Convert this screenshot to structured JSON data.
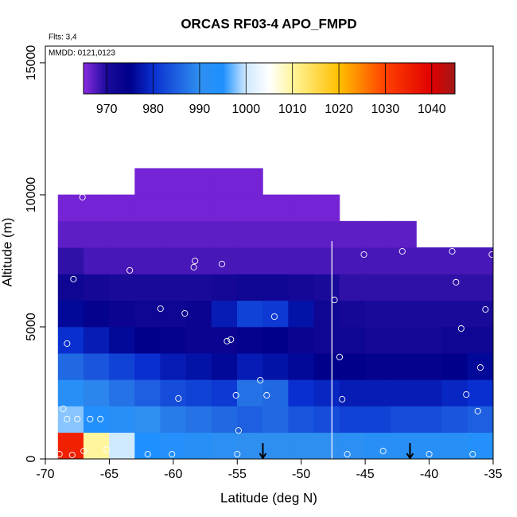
{
  "chart_data": {
    "type": "heatmap",
    "title": "ORCAS RF03-4 APO_FMPD",
    "annotations": [
      "Flts: 3,4",
      "MMDD: 0121,0123"
    ],
    "xlabel": "Latitude (deg N)",
    "ylabel": "Altitude (m)",
    "xlim": [
      -70,
      -35
    ],
    "ylim": [
      0,
      15630
    ],
    "xticks": [
      -70,
      -65,
      -60,
      -55,
      -50,
      -45,
      -40,
      -35
    ],
    "yticks": [
      0,
      5000,
      10000,
      15000
    ],
    "x_edges": [
      -69,
      -67,
      -65,
      -63,
      -61,
      -59,
      -57,
      -55,
      -53,
      -51,
      -49,
      -47,
      -45,
      -43,
      -41,
      -39,
      -37,
      -35
    ],
    "y_edges": [
      0,
      1000,
      2000,
      3000,
      4000,
      5000,
      6000,
      7000,
      8000,
      9000,
      10000,
      11000
    ],
    "z": [
      [
        1035,
        1010,
        1000,
        995,
        993,
        992,
        991,
        990,
        990,
        990,
        990,
        991,
        992,
        992,
        992,
        992,
        993
      ],
      [
        998,
        994,
        992,
        990,
        988,
        987,
        986,
        985,
        986,
        984,
        983,
        982,
        982,
        983,
        983,
        984,
        985
      ],
      [
        992,
        989,
        987,
        985,
        983,
        982,
        981,
        987,
        986,
        980,
        979,
        978,
        978,
        978,
        978,
        979,
        980
      ],
      [
        986,
        984,
        982,
        980,
        978,
        977,
        976,
        978,
        977,
        976,
        975,
        975,
        974,
        974,
        974,
        975,
        976
      ],
      [
        980,
        978,
        976,
        975,
        974,
        973,
        973,
        974,
        975,
        973,
        972,
        972,
        971,
        971,
        971,
        972,
        972
      ],
      [
        976,
        974,
        973,
        972,
        972,
        973,
        978,
        982,
        981,
        977,
        972,
        971,
        970,
        970,
        970,
        970,
        970
      ],
      [
        972,
        971,
        970,
        970,
        970,
        970,
        971,
        972,
        972,
        971,
        970,
        969,
        969,
        969,
        969,
        969,
        969
      ],
      [
        969,
        968,
        968,
        968,
        968,
        968,
        968,
        968,
        968,
        968,
        968,
        968,
        968,
        968,
        968,
        968,
        968
      ],
      [
        967,
        967,
        967,
        967,
        967,
        967,
        967,
        967,
        967,
        967,
        967,
        967,
        967,
        967,
        null,
        null,
        null
      ],
      [
        966,
        966,
        966,
        966,
        966,
        966,
        966,
        966,
        966,
        966,
        966,
        null,
        null,
        null,
        null,
        null,
        null
      ],
      [
        null,
        null,
        null,
        966,
        966,
        966,
        966,
        966,
        null,
        null,
        null,
        null,
        null,
        null,
        null,
        null,
        null
      ]
    ],
    "colorscale": [
      {
        "value": 965,
        "color": "#8a2be2"
      },
      {
        "value": 970,
        "color": "#1a0a9a"
      },
      {
        "value": 975,
        "color": "#00008b"
      },
      {
        "value": 980,
        "color": "#0a2fd0"
      },
      {
        "value": 990,
        "color": "#2f8ff0"
      },
      {
        "value": 995,
        "color": "#1e90ff"
      },
      {
        "value": 1000,
        "color": "#cfe9ff"
      },
      {
        "value": 1005,
        "color": "#ffffff"
      },
      {
        "value": 1010,
        "color": "#fff59d"
      },
      {
        "value": 1020,
        "color": "#ffc000"
      },
      {
        "value": 1030,
        "color": "#ff4000"
      },
      {
        "value": 1040,
        "color": "#e00000"
      },
      {
        "value": 1045,
        "color": "#a01818"
      }
    ],
    "colorbar_lim": [
      965,
      1045
    ],
    "colorbar_ticks": [
      970,
      980,
      990,
      1000,
      1010,
      1020,
      1030,
      1040
    ],
    "samples": {
      "x": [
        -67.1,
        -67.8,
        -68.3,
        -68.6,
        -68.3,
        -67.5,
        -66.5,
        -65.7,
        -68.9,
        -67.9,
        -67.0,
        -65.2,
        -62.0,
        -60.1,
        -63.4,
        -61.0,
        -59.1,
        -58.3,
        -58.4,
        -56.2,
        -59.6,
        -55.8,
        -55.5,
        -55.1,
        -54.9,
        -55.0,
        -53.2,
        -52.7,
        -52.1,
        -47.4,
        -47.0,
        -46.8,
        -46.4,
        -45.1,
        -43.6,
        -42.1,
        -40.0,
        -38.2,
        -37.9,
        -37.5,
        -36.6,
        -36.0,
        -35.6,
        -35.1,
        -36.2,
        -37.1
      ],
      "y": [
        9910,
        6810,
        4370,
        1900,
        1510,
        1510,
        1510,
        1510,
        180,
        150,
        300,
        360,
        180,
        180,
        7140,
        5690,
        5510,
        7500,
        7260,
        7380,
        2290,
        4460,
        4520,
        2410,
        1080,
        180,
        2980,
        2410,
        5390,
        6020,
        3860,
        2260,
        180,
        7740,
        300,
        7860,
        180,
        7860,
        6690,
        4940,
        180,
        3460,
        5660,
        7740,
        1810,
        2440
      ]
    },
    "arrows_x": [
      -53.0,
      -41.5
    ],
    "divider_x": -47.6
  }
}
